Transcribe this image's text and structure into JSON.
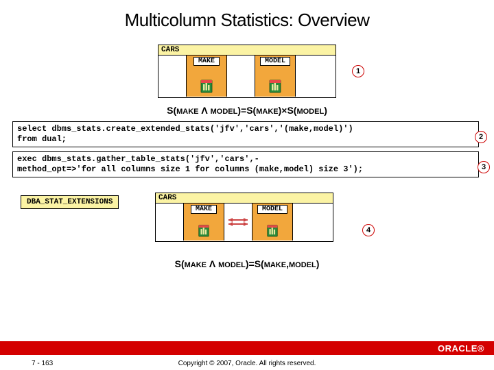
{
  "title": "Multicolumn Statistics: Overview",
  "cars_label": "CARS",
  "make_label": "MAKE",
  "model_label": "MODEL",
  "formula1_html": "S(<span class='small'>MAKE</span> Λ <span class='small'>MODEL</span>)=S(<span class='small'>MAKE</span>)×S(<span class='small'>MODEL</span>)",
  "code1": "select dbms_stats.create_extended_stats('jfv','cars','(make,model)')\nfrom dual;",
  "code2": "exec dbms_stats.gather_table_stats('jfv','cars',-\nmethod_opt=>'for all columns size 1 for columns (make,model) size 3');",
  "dba_label": "DBA_STAT_EXTENSIONS",
  "formula2_html": "S(<span class='small'>MAKE</span> Λ <span class='small'>MODEL</span>)=S(<span class='small'>MAKE</span>,<span class='small'>MODEL</span>)",
  "footer": {
    "page": "7 - 163",
    "copyright": "Copyright © 2007, Oracle. All rights reserved.",
    "logo": "ORACLE"
  },
  "nums": {
    "n1": "1",
    "n2": "2",
    "n3": "3",
    "n4": "4"
  },
  "colors": {
    "orange": "#f2a73c",
    "yellow": "#fbf3a4",
    "red": "#d40000",
    "circle_border": "#c00"
  }
}
